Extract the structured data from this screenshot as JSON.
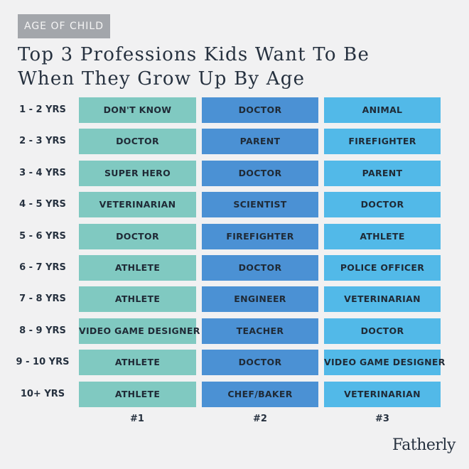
{
  "badge": "AGE OF CHILD",
  "title": [
    "Top 3 Professions Kids Want To Be",
    "When They Grow Up By Age"
  ],
  "colors": {
    "rank1": "#80c9c1",
    "rank2": "#4b91d4",
    "rank3": "#52b9e8",
    "background": "#f1f1f2"
  },
  "rows": [
    {
      "age": "1 - 2 YRS",
      "p": [
        "DON'T KNOW",
        "DOCTOR",
        "ANIMAL"
      ]
    },
    {
      "age": "2 - 3 YRS",
      "p": [
        "DOCTOR",
        "PARENT",
        "FIREFIGHTER"
      ]
    },
    {
      "age": "3 - 4 YRS",
      "p": [
        "SUPER HERO",
        "DOCTOR",
        "PARENT"
      ]
    },
    {
      "age": "4 - 5 YRS",
      "p": [
        "VETERINARIAN",
        "SCIENTIST",
        "DOCTOR"
      ]
    },
    {
      "age": "5 - 6 YRS",
      "p": [
        "DOCTOR",
        "FIREFIGHTER",
        "ATHLETE"
      ]
    },
    {
      "age": "6 - 7 YRS",
      "p": [
        "ATHLETE",
        "DOCTOR",
        "POLICE OFFICER"
      ]
    },
    {
      "age": "7 - 8 YRS",
      "p": [
        "ATHLETE",
        "ENGINEER",
        "VETERINARIAN"
      ]
    },
    {
      "age": "8 - 9 YRS",
      "p": [
        "VIDEO GAME DESIGNER",
        "TEACHER",
        "DOCTOR"
      ]
    },
    {
      "age": "9 - 10 YRS",
      "p": [
        "ATHLETE",
        "DOCTOR",
        "VIDEO GAME DESIGNER"
      ]
    },
    {
      "age": "10+ YRS",
      "p": [
        "ATHLETE",
        "CHEF/BAKER",
        "VETERINARIAN"
      ]
    }
  ],
  "ranks": [
    "#1",
    "#2",
    "#3"
  ],
  "logo": "Fatherly"
}
